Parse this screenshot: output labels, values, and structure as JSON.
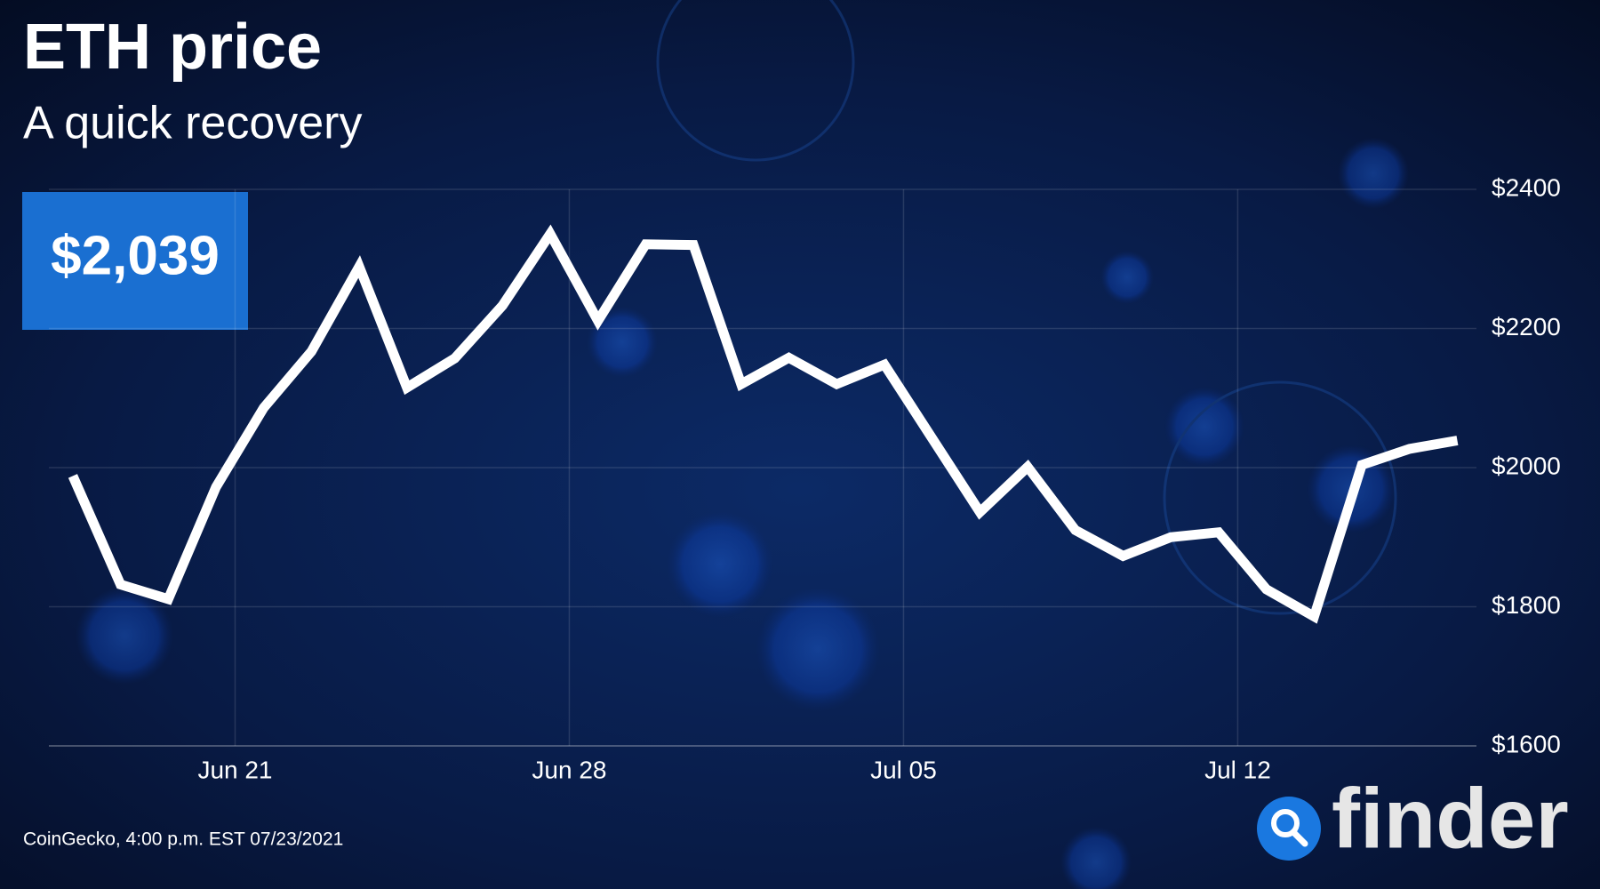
{
  "chart_data": {
    "type": "line",
    "title": "ETH price",
    "subtitle": "A quick recovery",
    "highlight": "$2,039",
    "source": "CoinGecko, 4:00 p.m. EST 07/23/2021",
    "brand": "finder",
    "x": [
      0,
      1,
      2,
      3,
      4,
      5,
      6,
      7,
      8,
      9,
      10,
      11,
      12,
      13,
      14,
      15,
      16,
      17,
      18,
      19,
      20,
      21,
      22,
      23,
      24,
      25,
      26,
      27,
      28,
      29
    ],
    "series": [
      {
        "name": "ETH",
        "color": "#ffffff",
        "values": [
          1988,
          1832,
          1811,
          1972,
          2086,
          2167,
          2289,
          2115,
          2157,
          2233,
          2336,
          2211,
          2321,
          2320,
          2120,
          2158,
          2120,
          2148,
          2042,
          1936,
          2001,
          1910,
          1873,
          1900,
          1907,
          1825,
          1786,
          2004,
          2027,
          2039
        ]
      }
    ],
    "xlim": [
      -0.5,
      29.4
    ],
    "xticks": [
      {
        "value": 3.4,
        "label": "Jun 21"
      },
      {
        "value": 10.4,
        "label": "Jun 28"
      },
      {
        "value": 17.4,
        "label": "Jul 05"
      },
      {
        "value": 24.4,
        "label": "Jul 12"
      }
    ],
    "ylim": [
      1600,
      2400
    ],
    "yticks": [
      {
        "value": 1600,
        "label": "$1600"
      },
      {
        "value": 1800,
        "label": "$1800"
      },
      {
        "value": 2000,
        "label": "$2000"
      },
      {
        "value": 2200,
        "label": "$2200"
      },
      {
        "value": 2400,
        "label": "$2400"
      }
    ],
    "grid": true
  }
}
